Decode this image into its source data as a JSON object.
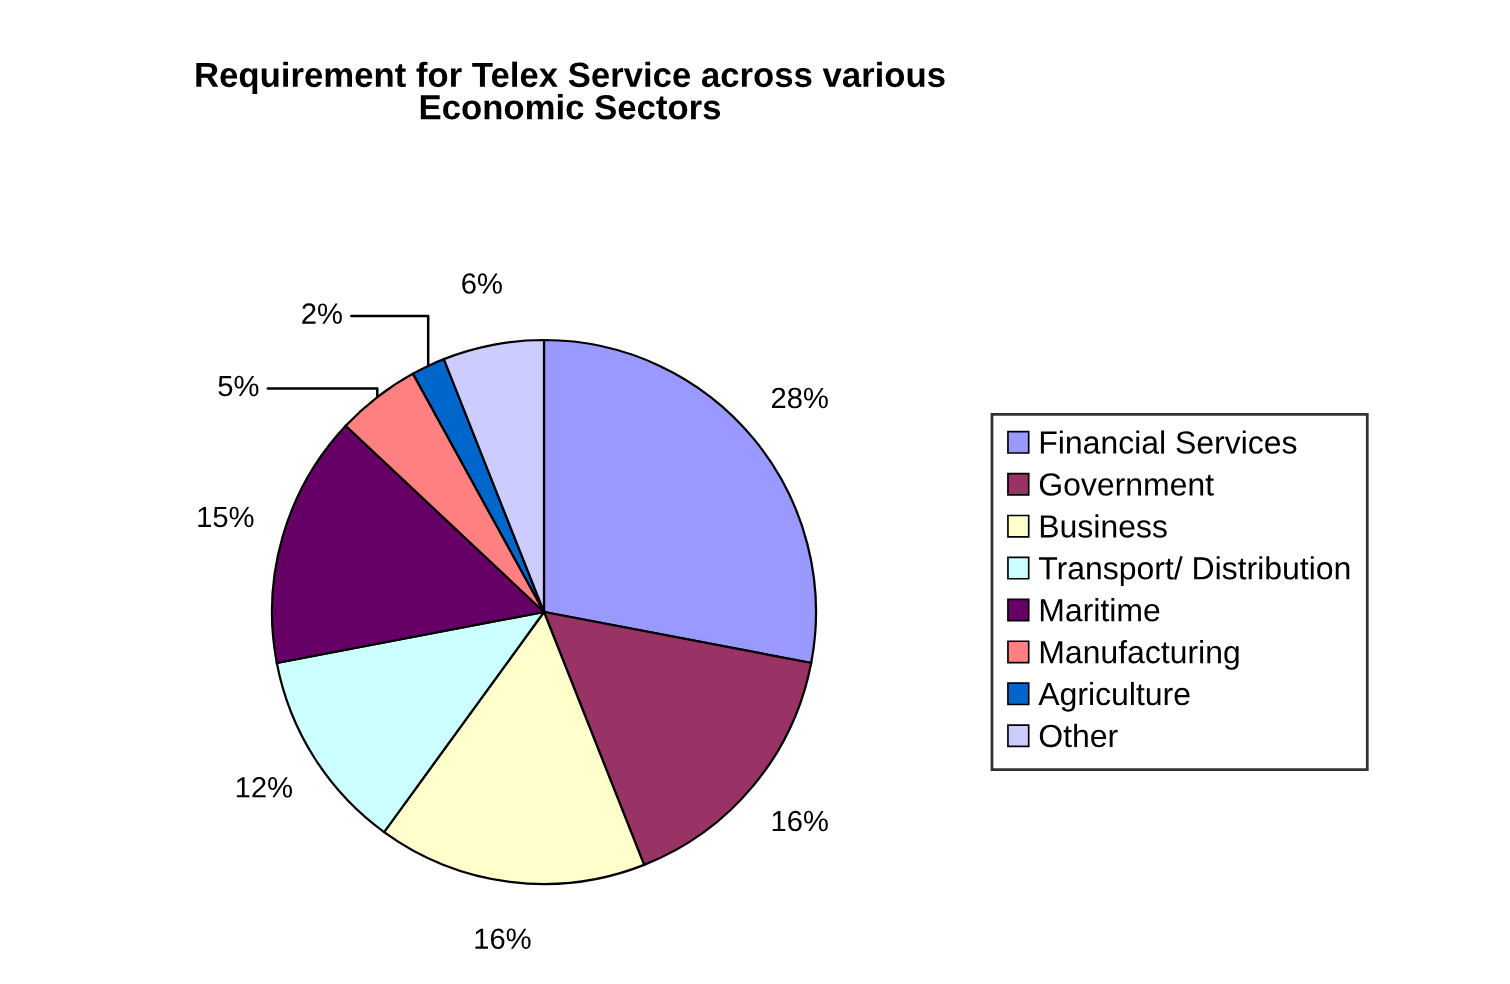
{
  "chart_data": {
    "type": "pie",
    "title": "Requirement for Telex Service across various\nEconomic Sectors",
    "categories": [
      "Financial Services",
      "Government",
      "Business",
      "Transport/ Distribution",
      "Maritime",
      "Manufacturing",
      "Agriculture",
      "Other"
    ],
    "values": [
      28,
      16,
      16,
      12,
      15,
      5,
      2,
      6
    ],
    "colors": [
      "#9999ff",
      "#993366",
      "#ffffcc",
      "#ccffff",
      "#660066",
      "#ff8080",
      "#0066cc",
      "#ccccff"
    ],
    "value_labels": [
      "28%",
      "16%",
      "16%",
      "12%",
      "15%",
      "5%",
      "2%",
      "6%"
    ],
    "legend": "right"
  }
}
